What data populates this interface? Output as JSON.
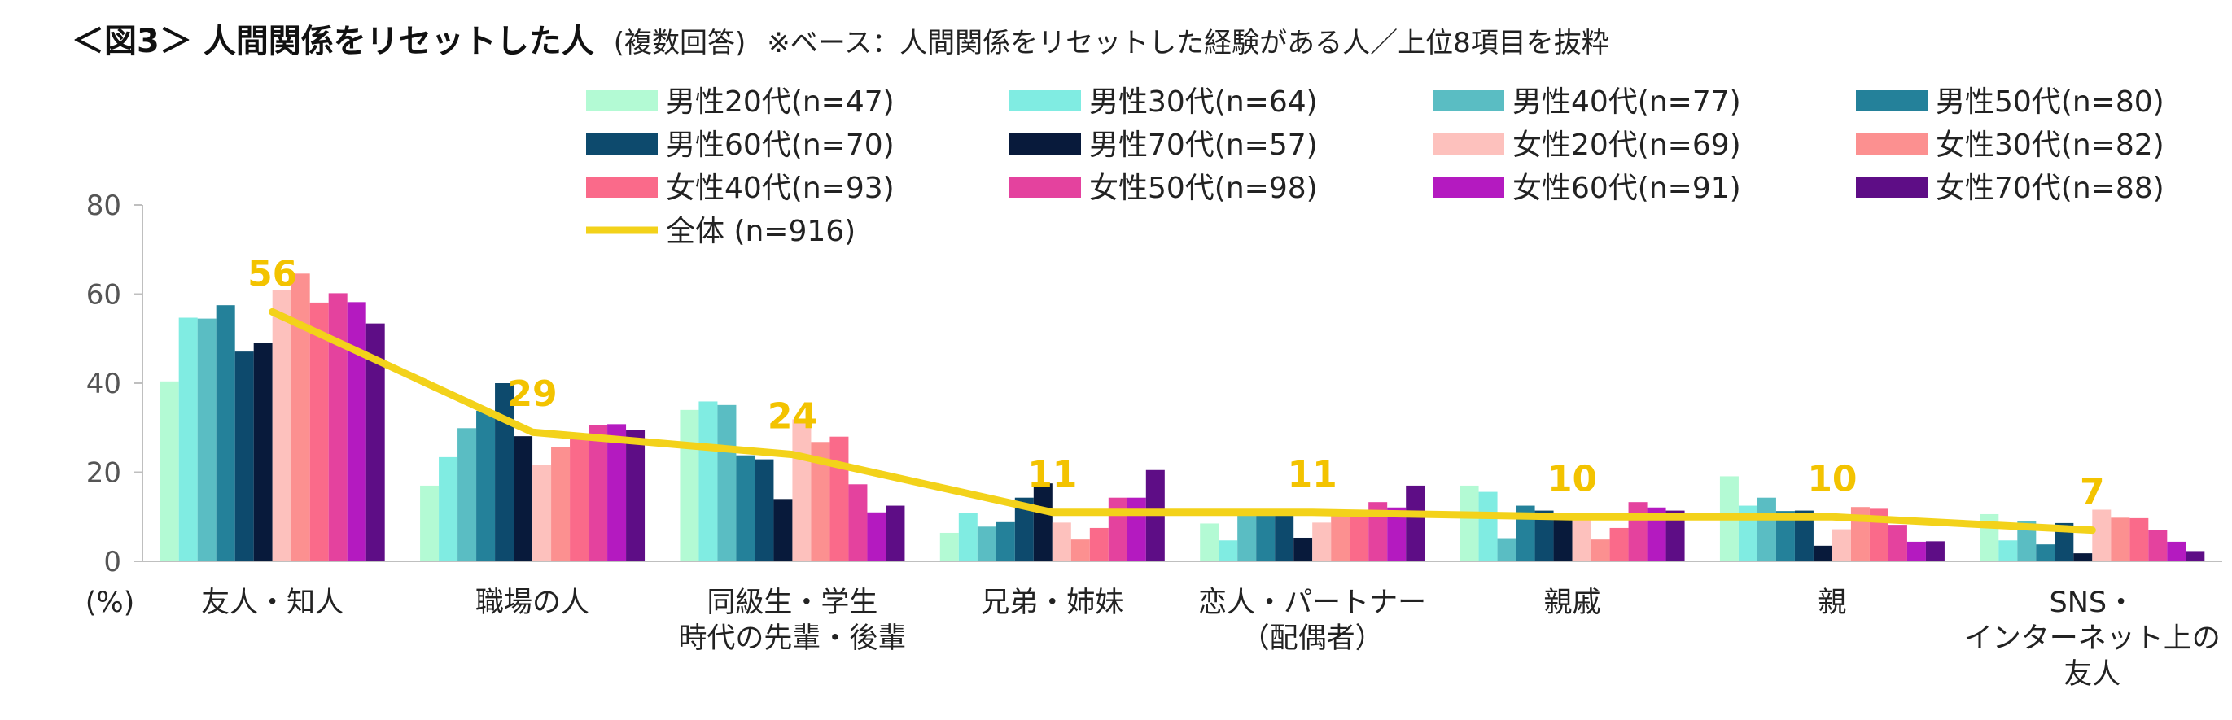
{
  "title": "＜図3＞ 人間関係をリセットした人",
  "title_note": "(複数回答)",
  "subtitle": "※ベース：人間関係をリセットした経験がある人／上位8項目を抜粋",
  "chart_data": {
    "type": "bar",
    "unit_label": "(%)",
    "ylim": [
      0,
      80
    ],
    "yticks": [
      0,
      20,
      40,
      60,
      80
    ],
    "grid": false,
    "legend_position": "top",
    "categories": [
      [
        "友人・知人"
      ],
      [
        "職場の人"
      ],
      [
        "同級生・学生",
        "時代の先輩・後輩"
      ],
      [
        "兄弟・姉妹"
      ],
      [
        "恋人・パートナー",
        "（配偶者）"
      ],
      [
        "親戚"
      ],
      [
        "親"
      ],
      [
        "SNS・",
        "インターネット上の",
        "友人"
      ]
    ],
    "series": [
      {
        "name": "男性20代(n=47)",
        "color": "#B3FAD4",
        "values": [
          40.4,
          17.0,
          34.0,
          6.4,
          8.5,
          17.0,
          19.1,
          10.6
        ]
      },
      {
        "name": "男性30代(n=64)",
        "color": "#80ECE2",
        "values": [
          54.7,
          23.4,
          35.9,
          10.9,
          4.7,
          15.6,
          12.5,
          4.7
        ]
      },
      {
        "name": "男性40代(n=77)",
        "color": "#5ABDC3",
        "values": [
          54.5,
          29.9,
          35.1,
          7.8,
          10.4,
          5.2,
          14.3,
          9.1
        ]
      },
      {
        "name": "男性50代(n=80)",
        "color": "#24819A",
        "values": [
          57.5,
          33.8,
          23.8,
          8.8,
          11.3,
          12.5,
          11.3,
          3.8
        ]
      },
      {
        "name": "男性60代(n=70)",
        "color": "#0D4A6D",
        "values": [
          47.1,
          40.0,
          22.9,
          14.3,
          11.4,
          11.4,
          11.4,
          8.6
        ]
      },
      {
        "name": "男性70代(n=57)",
        "color": "#081A3B",
        "values": [
          49.1,
          28.1,
          14.0,
          17.5,
          5.3,
          10.5,
          3.5,
          1.8
        ]
      },
      {
        "name": "女性20代(n=69)",
        "color": "#FDC1BD",
        "values": [
          60.9,
          21.7,
          31.9,
          8.7,
          8.7,
          10.1,
          7.2,
          11.6
        ]
      },
      {
        "name": "女性30代(n=82)",
        "color": "#FC9090",
        "values": [
          64.6,
          25.6,
          26.8,
          4.9,
          11.0,
          4.9,
          12.2,
          9.8
        ]
      },
      {
        "name": "女性40代(n=93)",
        "color": "#FA6A8A",
        "values": [
          58.1,
          28.0,
          28.0,
          7.5,
          10.8,
          7.5,
          11.8,
          9.7
        ]
      },
      {
        "name": "女性50代(n=98)",
        "color": "#E4429E",
        "values": [
          60.2,
          30.6,
          17.3,
          14.3,
          13.3,
          13.3,
          8.2,
          7.1
        ]
      },
      {
        "name": "女性60代(n=91)",
        "color": "#B41AC0",
        "values": [
          58.2,
          30.8,
          11.0,
          14.3,
          12.1,
          12.1,
          4.4,
          4.4
        ]
      },
      {
        "name": "女性70代(n=88)",
        "color": "#5E0D86",
        "values": [
          53.4,
          29.5,
          12.5,
          20.5,
          17.0,
          11.4,
          4.5,
          2.3
        ]
      }
    ],
    "total_line": {
      "name": "全体 (n=916)",
      "color": "#F3D21A",
      "values": [
        56,
        29,
        24,
        11,
        11,
        10,
        10,
        7
      ],
      "labels": [
        "56",
        "29",
        "24",
        "11",
        "11",
        "10",
        "10",
        "7"
      ]
    }
  }
}
